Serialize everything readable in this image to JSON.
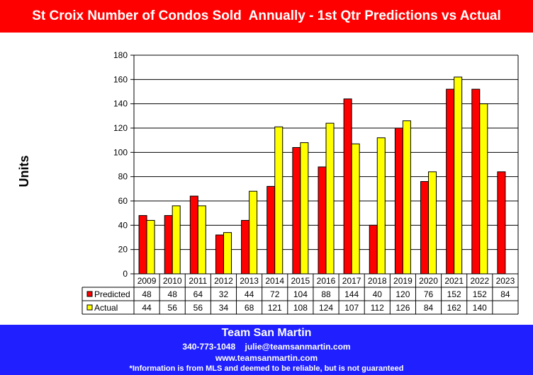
{
  "header": {
    "title": "St Croix Number of Condos Sold  Annually - 1st Qtr Predictions vs Actual"
  },
  "colors": {
    "title_bg": "#ff0000",
    "footer_bg": "#1f1fff",
    "predicted": "#ff0000",
    "actual": "#ffff00",
    "text_on_bar": "#ffffff"
  },
  "chart_data": {
    "type": "bar",
    "ylabel": "Units",
    "ylim": [
      0,
      180
    ],
    "yticks": [
      0,
      20,
      40,
      60,
      80,
      100,
      120,
      140,
      160,
      180
    ],
    "grid": true,
    "categories": [
      "2009",
      "2010",
      "2011",
      "2012",
      "2013",
      "2014",
      "2015",
      "2016",
      "2017",
      "2018",
      "2019",
      "2020",
      "2021",
      "2022",
      "2023"
    ],
    "series": [
      {
        "name": "Predicted",
        "color": "#ff0000",
        "values": [
          48,
          48,
          64,
          32,
          44,
          72,
          104,
          88,
          144,
          40,
          120,
          76,
          152,
          152,
          84
        ]
      },
      {
        "name": "Actual",
        "color": "#ffff00",
        "values": [
          44,
          56,
          56,
          34,
          68,
          121,
          108,
          124,
          107,
          112,
          126,
          84,
          162,
          140,
          null
        ]
      }
    ],
    "data_table": true
  },
  "footer": {
    "name": "Team San Martin",
    "phone": "340-773-1048",
    "email": "julie@teamsanmartin.com",
    "website": "www.teamsanmartin.com",
    "disclaimer": "*Information is from MLS and deemed to be reliable, but is not guaranteed"
  }
}
